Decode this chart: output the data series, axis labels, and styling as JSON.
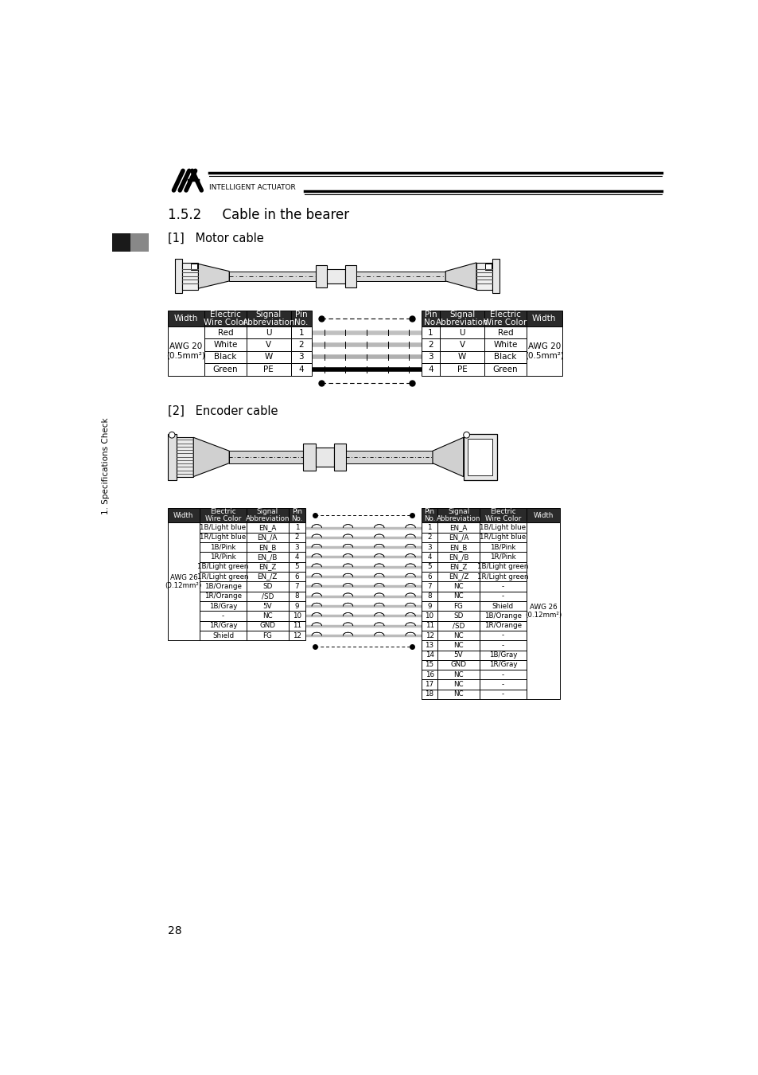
{
  "title_section": "1.5.2     Cable in the bearer",
  "section1_title": "[1]   Motor cable",
  "section2_title": "[2]   Encoder cable",
  "page_number": "28",
  "sidebar_text": "1. Specifications Check",
  "bg_color": "#ffffff",
  "header_bg": "#2a2a2a",
  "header_fg": "#ffffff",
  "motor_left_headers": [
    "Width",
    "Electric\nWire Color",
    "Signal\nAbbreviation",
    "Pin\nNo."
  ],
  "motor_left_rows": [
    [
      "AWG 20\n(0.5mm²)",
      "Red",
      "U",
      "1"
    ],
    [
      "",
      "White",
      "V",
      "2"
    ],
    [
      "",
      "Black",
      "W",
      "3"
    ],
    [
      "",
      "Green",
      "PE",
      "4"
    ]
  ],
  "motor_right_headers": [
    "Pin\nNo.",
    "Signal\nAbbreviation",
    "Electric\nWire Color",
    "Width"
  ],
  "motor_right_rows": [
    [
      "1",
      "U",
      "Red",
      "AWG 20\n(0.5mm²)"
    ],
    [
      "2",
      "V",
      "White",
      ""
    ],
    [
      "3",
      "W",
      "Black",
      ""
    ],
    [
      "4",
      "PE",
      "Green",
      ""
    ]
  ],
  "enc_left_headers": [
    "Width",
    "Electric\nWire Color",
    "Signal\nAbbreviation",
    "Pin\nNo."
  ],
  "enc_left_rows": [
    [
      "AWG 26\n(0.12mm²)",
      "1B/Light blue",
      "EN_A",
      "1"
    ],
    [
      "",
      "1R/Light blue",
      "EN_/A",
      "2"
    ],
    [
      "",
      "1B/Pink",
      "EN_B",
      "3"
    ],
    [
      "",
      "1R/Pink",
      "EN_/B",
      "4"
    ],
    [
      "",
      "1B/Light green",
      "EN_Z",
      "5"
    ],
    [
      "",
      "1R/Light green",
      "EN_/Z",
      "6"
    ],
    [
      "",
      "1B/Orange",
      "SD",
      "7"
    ],
    [
      "",
      "1R/Orange",
      "/SD",
      "8"
    ],
    [
      "",
      "1B/Gray",
      "5V",
      "9"
    ],
    [
      "",
      "-",
      "NC",
      "10"
    ],
    [
      "",
      "1R/Gray",
      "GND",
      "11"
    ],
    [
      "",
      "Shield",
      "FG",
      "12"
    ]
  ],
  "enc_right_headers": [
    "Pin\nNo.",
    "Signal\nAbbreviation",
    "Electric\nWire Color",
    "Width"
  ],
  "enc_right_rows": [
    [
      "1",
      "EN_A",
      "1B/Light blue",
      "AWG 26\n(0.12mm²)"
    ],
    [
      "2",
      "EN_/A",
      "1R/Light blue",
      ""
    ],
    [
      "3",
      "EN_B",
      "1B/Pink",
      ""
    ],
    [
      "4",
      "EN_/B",
      "1R/Pink",
      ""
    ],
    [
      "5",
      "EN_Z",
      "1B/Light green",
      ""
    ],
    [
      "6",
      "EN_/Z",
      "1R/Light green",
      ""
    ],
    [
      "7",
      "NC",
      "-",
      ""
    ],
    [
      "8",
      "NC",
      "-",
      ""
    ],
    [
      "9",
      "FG",
      "Shield",
      ""
    ],
    [
      "10",
      "SD",
      "1B/Orange",
      ""
    ],
    [
      "11",
      "/SD",
      "1R/Orange",
      ""
    ],
    [
      "12",
      "NC",
      "-",
      ""
    ],
    [
      "13",
      "NC",
      "-",
      ""
    ],
    [
      "14",
      "5V",
      "1B/Gray",
      ""
    ],
    [
      "15",
      "GND",
      "1R/Gray",
      ""
    ],
    [
      "16",
      "NC",
      "-",
      ""
    ],
    [
      "17",
      "NC",
      "-",
      ""
    ],
    [
      "18",
      "NC",
      "-",
      ""
    ]
  ]
}
